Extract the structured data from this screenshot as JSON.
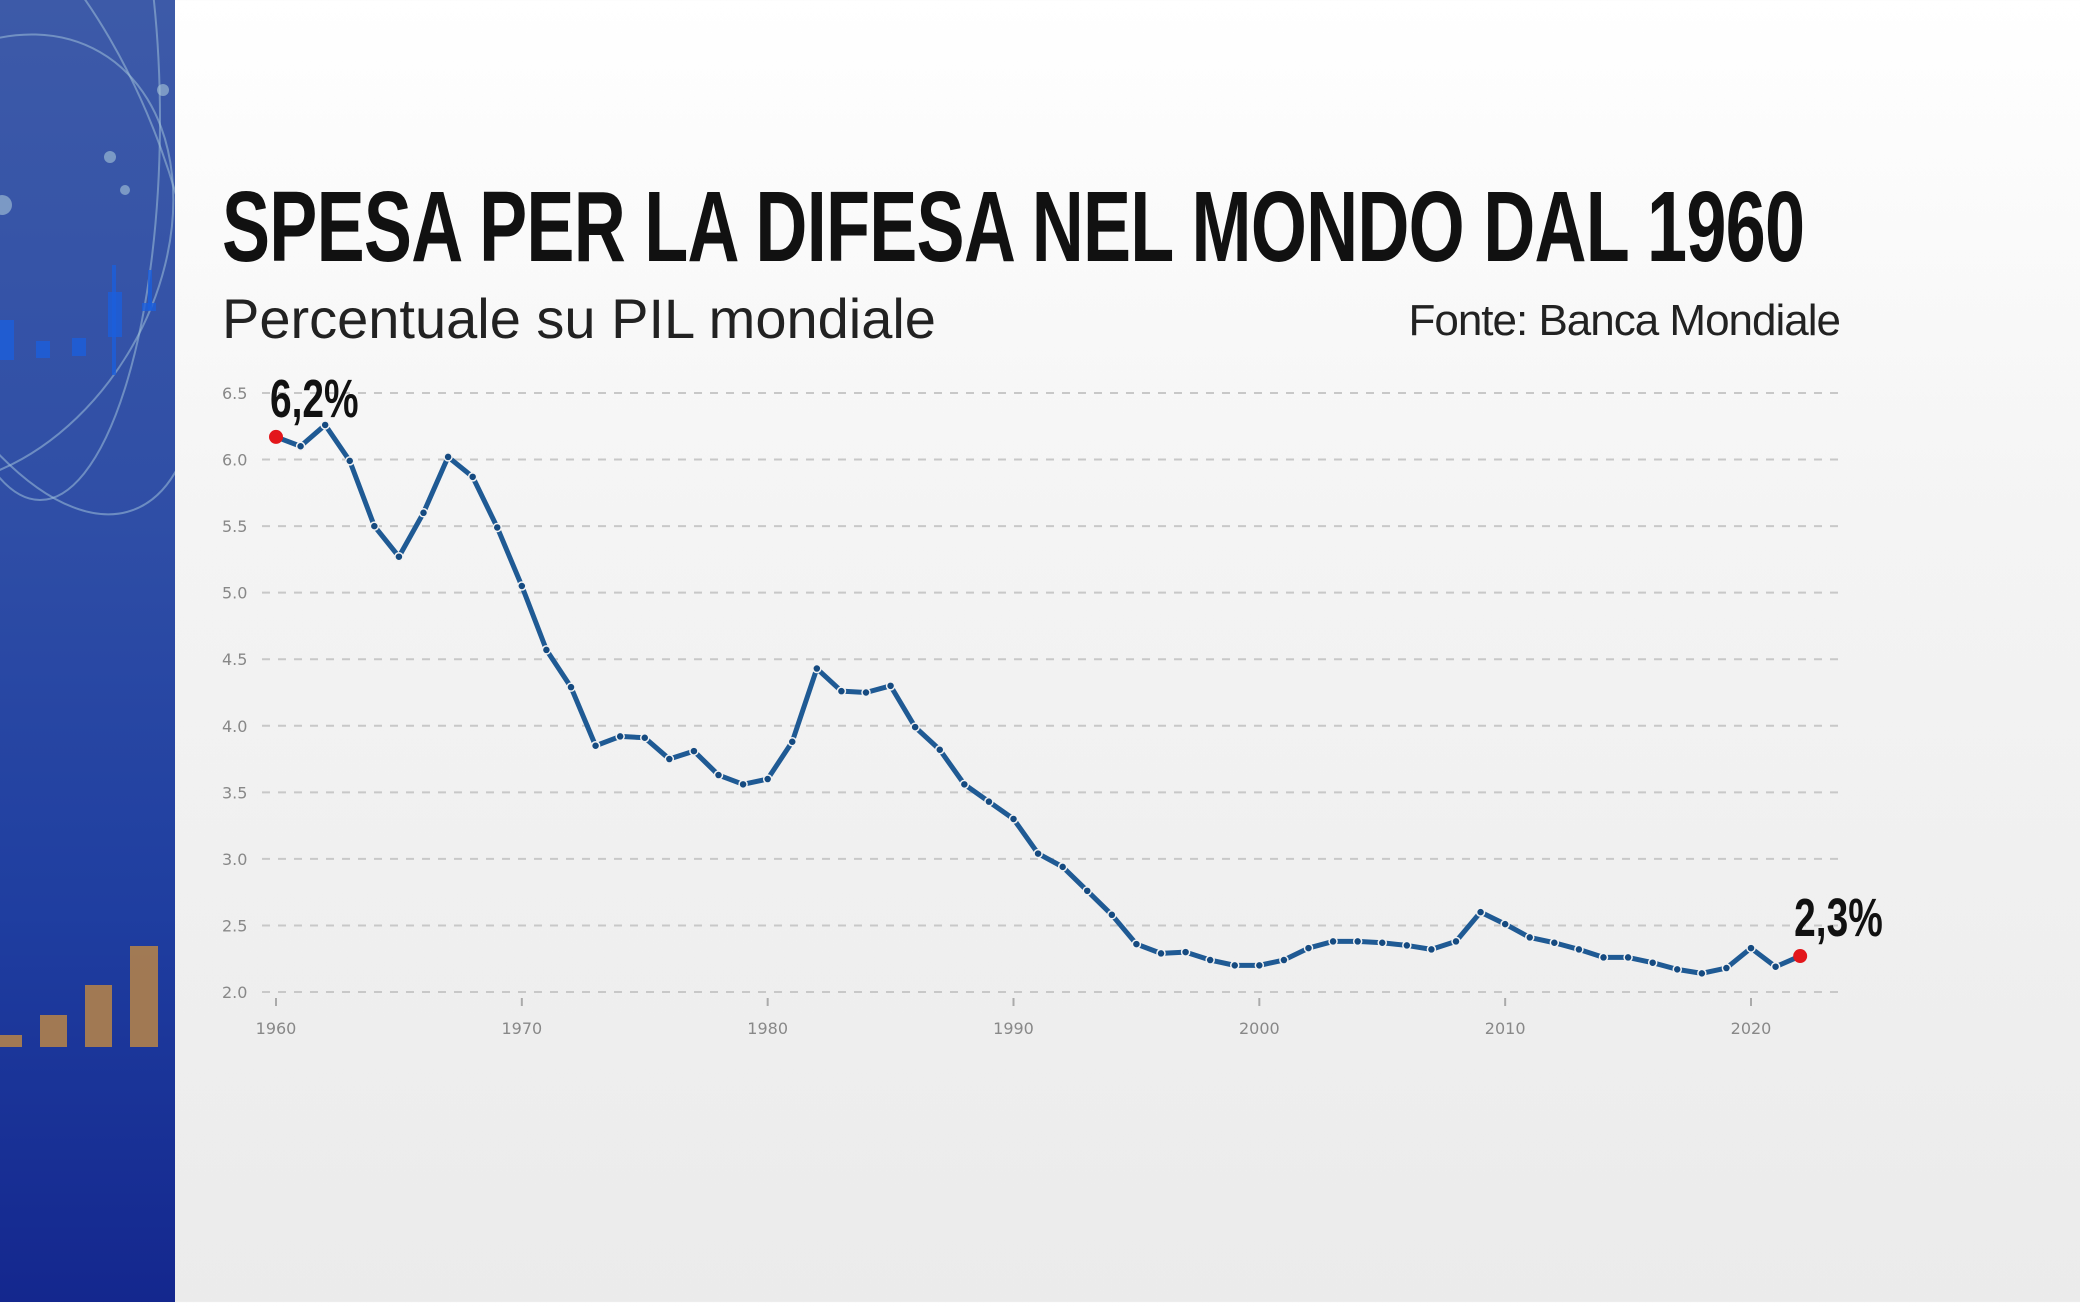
{
  "title": "SPESA PER LA DIFESA NEL MONDO DAL 1960",
  "subtitle": "Percentuale su PIL mondiale",
  "source": "Fonte: Banca Mondiale",
  "colors": {
    "line": "#1f5a94",
    "highlight": "#e3161b",
    "sidebar": "#2f4ea6"
  },
  "chart_data": {
    "type": "line",
    "title": "SPESA PER LA DIFESA NEL MONDO DAL 1960",
    "subtitle": "Percentuale su PIL mondiale",
    "xlabel": "",
    "ylabel": "",
    "xlim": [
      1960,
      2022
    ],
    "ylim": [
      2.0,
      6.5
    ],
    "grid": true,
    "x_ticks": [
      "1960",
      "1970",
      "1980",
      "1990",
      "2000",
      "2010",
      "2020"
    ],
    "y_ticks": [
      "2.0",
      "2.5",
      "3.0",
      "3.5",
      "4.0",
      "4.5",
      "5.0",
      "5.5",
      "6.0",
      "6.5"
    ],
    "x": [
      1960,
      1961,
      1962,
      1963,
      1964,
      1965,
      1966,
      1967,
      1968,
      1969,
      1970,
      1971,
      1972,
      1973,
      1974,
      1975,
      1976,
      1977,
      1978,
      1979,
      1980,
      1981,
      1982,
      1983,
      1984,
      1985,
      1986,
      1987,
      1988,
      1989,
      1990,
      1991,
      1992,
      1993,
      1994,
      1995,
      1996,
      1997,
      1998,
      1999,
      2000,
      2001,
      2002,
      2003,
      2004,
      2005,
      2006,
      2007,
      2008,
      2009,
      2010,
      2011,
      2012,
      2013,
      2014,
      2015,
      2016,
      2017,
      2018,
      2019,
      2020,
      2021,
      2022
    ],
    "values": [
      6.17,
      6.1,
      6.26,
      5.99,
      5.5,
      5.27,
      5.6,
      6.02,
      5.87,
      5.49,
      5.05,
      4.57,
      4.29,
      3.85,
      3.92,
      3.91,
      3.75,
      3.81,
      3.63,
      3.56,
      3.6,
      3.88,
      4.43,
      4.26,
      4.25,
      4.3,
      3.99,
      3.82,
      3.56,
      3.43,
      3.3,
      3.04,
      2.94,
      2.76,
      2.58,
      2.36,
      2.29,
      2.3,
      2.24,
      2.2,
      2.2,
      2.24,
      2.33,
      2.38,
      2.38,
      2.37,
      2.35,
      2.32,
      2.38,
      2.6,
      2.51,
      2.41,
      2.37,
      2.32,
      2.26,
      2.26,
      2.22,
      2.17,
      2.14,
      2.18,
      2.33,
      2.19,
      2.27
    ],
    "annotations": [
      {
        "x": 1960,
        "label": "6,2%"
      },
      {
        "x": 2022,
        "label": "2,3%"
      }
    ]
  }
}
